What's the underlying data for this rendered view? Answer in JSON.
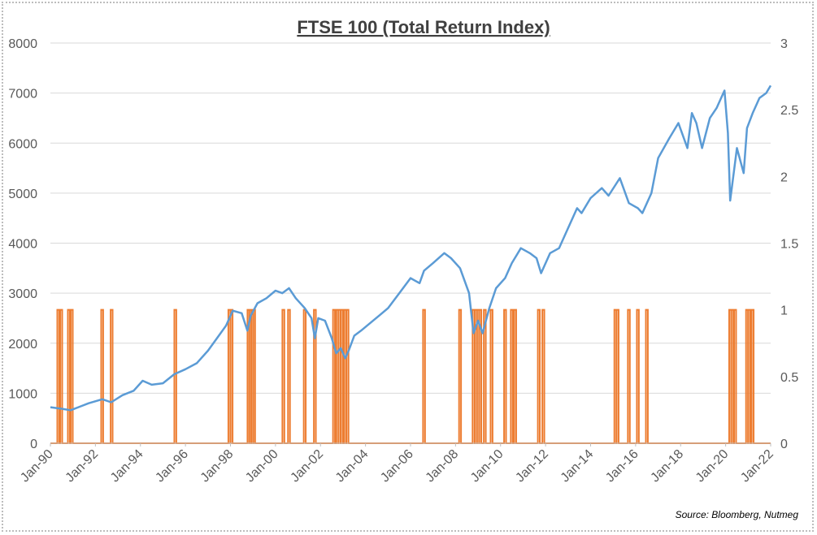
{
  "chart_data": {
    "type": "line",
    "title": "FTSE 100 (Total Return Index)",
    "source": "Source: Bloomberg, Nutmeg",
    "x_tick_labels": [
      "Jan-90",
      "Jan-92",
      "Jan-94",
      "Jan-96",
      "Jan-98",
      "Jan-00",
      "Jan-02",
      "Jan-04",
      "Jan-06",
      "Jan-08",
      "Jan-10",
      "Jan-12",
      "Jan-14",
      "Jan-16",
      "Jan-18",
      "Jan-20",
      "Jan-22"
    ],
    "xlim": [
      1990,
      2022
    ],
    "y_left": {
      "ticks": [
        0,
        1000,
        2000,
        3000,
        4000,
        5000,
        6000,
        7000,
        8000
      ],
      "lim": [
        0,
        8000
      ]
    },
    "y_right": {
      "ticks": [
        "0",
        "0.5",
        "1",
        "1.5",
        "2",
        "2.5",
        "3"
      ],
      "lim": [
        0,
        3
      ]
    },
    "grid": "horizontal",
    "colors": {
      "index": "#5b9bd5",
      "signal": "#ed7d31",
      "grid": "#d9d9d9",
      "axis": "#bfbfbf"
    },
    "series": [
      {
        "axis": "left",
        "color": "#5b9bd5",
        "x": [
          1990,
          1990.5,
          1990.9,
          1991.3,
          1991.7,
          1992.3,
          1992.7,
          1993.2,
          1993.7,
          1994.1,
          1994.5,
          1995,
          1995.5,
          1996,
          1996.5,
          1997,
          1997.4,
          1997.8,
          1998.1,
          1998.5,
          1998.75,
          1998.9,
          1999.2,
          1999.6,
          2000,
          2000.3,
          2000.6,
          2000.9,
          2001.3,
          2001.6,
          2001.75,
          2001.9,
          2002.2,
          2002.5,
          2002.7,
          2002.9,
          2003.1,
          2003.25,
          2003.5,
          2003.8,
          2004.2,
          2004.6,
          2005,
          2005.5,
          2006,
          2006.4,
          2006.6,
          2007,
          2007.5,
          2007.8,
          2008.2,
          2008.6,
          2008.8,
          2009.0,
          2009.2,
          2009.5,
          2009.8,
          2010.2,
          2010.5,
          2010.9,
          2011.3,
          2011.6,
          2011.8,
          2012.2,
          2012.6,
          2013,
          2013.4,
          2013.6,
          2014,
          2014.5,
          2014.8,
          2015.3,
          2015.7,
          2016.1,
          2016.3,
          2016.7,
          2017,
          2017.5,
          2017.9,
          2018.3,
          2018.5,
          2018.7,
          2018.95,
          2019.3,
          2019.6,
          2019.95,
          2020.1,
          2020.2,
          2020.5,
          2020.8,
          2020.95,
          2021.2,
          2021.5,
          2021.8,
          2022
        ],
        "y": [
          720,
          690,
          660,
          730,
          800,
          880,
          820,
          960,
          1050,
          1250,
          1170,
          1200,
          1380,
          1480,
          1600,
          1850,
          2100,
          2350,
          2650,
          2600,
          2250,
          2550,
          2800,
          2900,
          3050,
          3000,
          3100,
          2900,
          2700,
          2500,
          2100,
          2500,
          2450,
          2100,
          1800,
          1900,
          1700,
          1850,
          2150,
          2250,
          2400,
          2550,
          2700,
          3000,
          3300,
          3200,
          3450,
          3600,
          3800,
          3700,
          3500,
          3000,
          2200,
          2450,
          2200,
          2700,
          3100,
          3300,
          3600,
          3900,
          3800,
          3700,
          3400,
          3800,
          3900,
          4300,
          4700,
          4600,
          4900,
          5100,
          4950,
          5300,
          4800,
          4700,
          4600,
          5000,
          5700,
          6100,
          6400,
          5900,
          6600,
          6400,
          5900,
          6500,
          6700,
          7050,
          6200,
          4850,
          5900,
          5400,
          6300,
          6600,
          6900,
          7000,
          7150
        ]
      },
      {
        "axis": "right",
        "color": "#ed7d31",
        "type": "indicator",
        "value": 1,
        "event_dates": [
          1990.35,
          1990.48,
          1990.82,
          1990.95,
          1992.3,
          1992.72,
          1995.55,
          1997.95,
          1998.05,
          1998.8,
          1998.88,
          1998.97,
          1999.05,
          2000.35,
          2000.6,
          2001.3,
          2001.75,
          2002.6,
          2002.75,
          2002.85,
          2002.95,
          2003.1,
          2003.2,
          2006.6,
          2008.2,
          2008.8,
          2008.9,
          2009.0,
          2009.1,
          2009.3,
          2009.6,
          2010.2,
          2010.5,
          2010.65,
          2011.7,
          2011.9,
          2015.1,
          2015.2,
          2015.7,
          2016.1,
          2016.5,
          2020.2,
          2020.3,
          2020.42,
          2020.95,
          2021.05,
          2021.2
        ]
      }
    ]
  }
}
